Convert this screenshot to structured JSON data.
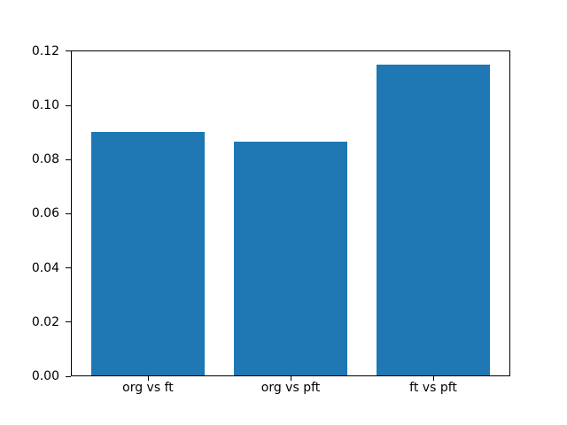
{
  "chart_data": {
    "type": "bar",
    "title": "",
    "xlabel": "",
    "ylabel": "",
    "categories": [
      "org vs ft",
      "org vs pft",
      "ft vs pft"
    ],
    "values": [
      0.0898,
      0.0862,
      0.1146
    ],
    "ylim": [
      0,
      0.1203
    ],
    "ytick_labels": [
      "0.00",
      "0.02",
      "0.04",
      "0.06",
      "0.08",
      "0.10",
      "0.12"
    ],
    "bar_color": "#1f77b4",
    "spine_color": "#000000",
    "background_color": "#ffffff",
    "grid": false,
    "legend": "none"
  }
}
